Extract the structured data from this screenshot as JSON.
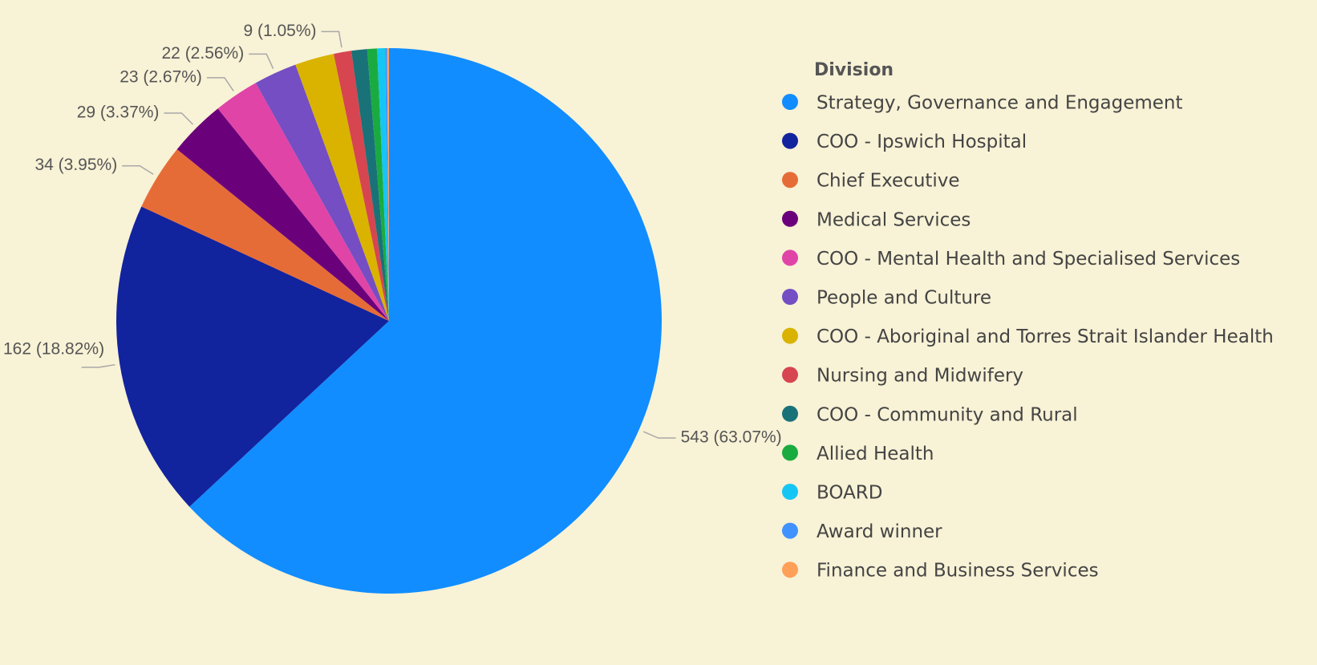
{
  "chart_data": {
    "type": "pie",
    "legend_title": "Division",
    "legend": "right",
    "categories": [
      "Strategy, Governance and Engagement",
      "COO - Ipswich Hospital",
      "Chief Executive",
      "Medical Services",
      "COO - Mental Health and Specialised Services",
      "People and Culture",
      "COO - Aboriginal and Torres Strait Islander Health",
      "Nursing and Midwifery",
      "COO - Community and Rural",
      "Allied Health",
      "BOARD",
      "Award winner",
      "Finance and Business Services"
    ],
    "values": [
      543,
      162,
      34,
      29,
      23,
      22,
      20,
      9,
      8,
      5,
      4,
      1,
      1
    ],
    "value_labels": [
      "543 (63.07%)",
      "162 (18.82%)",
      "34 (3.95%)",
      "29 (3.37%)",
      "23 (2.67%)",
      "22 (2.56%)",
      null,
      "9 (1.05%)",
      null,
      null,
      null,
      null,
      null
    ],
    "colors": [
      "#118dff",
      "#12239e",
      "#e66c37",
      "#6b007b",
      "#e044a7",
      "#744ec2",
      "#d9b300",
      "#d64550",
      "#197278",
      "#1aab40",
      "#15c6f4",
      "#4092ff",
      "#ffa058"
    ]
  }
}
